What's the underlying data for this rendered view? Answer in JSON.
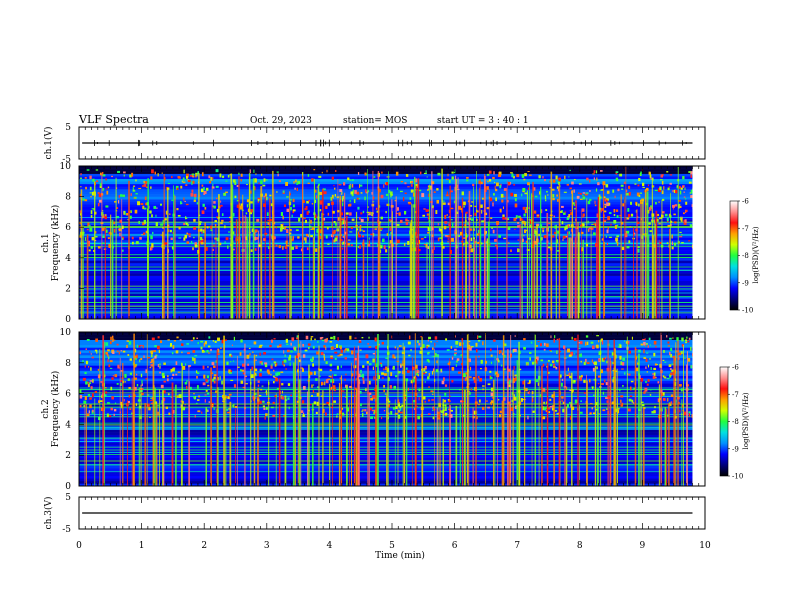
{
  "header": {
    "title": "VLF Spectra",
    "date": "Oct. 29, 2023",
    "station": "station= MOS",
    "start": "start UT =  3 : 40 : 1"
  },
  "chart_data": [
    {
      "type": "line",
      "id": "ch1-voltage",
      "ylabel": "ch.1(V)",
      "ylim": [
        -5,
        5
      ],
      "yticks": [
        "5",
        "-5"
      ],
      "xlim": [
        0,
        10
      ],
      "x": [
        0.05,
        9.8
      ],
      "y": [
        0,
        0
      ]
    },
    {
      "type": "heatmap",
      "id": "ch1-spectrogram",
      "ylabel": [
        "ch.1",
        "Frequency (kHz)"
      ],
      "ylim": [
        0,
        10
      ],
      "yticks": [
        "0",
        "2",
        "4",
        "6",
        "8",
        "10"
      ],
      "xlim": [
        0,
        10
      ],
      "data_extent_min": 9.8,
      "colorbar": {
        "label": "log(PSD)(V²/Hz)",
        "range": [
          -10,
          -6
        ],
        "ticks": [
          "-6",
          "-7",
          "-8",
          "-9",
          "-10"
        ]
      }
    },
    {
      "type": "heatmap",
      "id": "ch2-spectrogram",
      "ylabel": [
        "ch.2",
        "Frequency (kHz)"
      ],
      "ylim": [
        0,
        10
      ],
      "yticks": [
        "0",
        "2",
        "4",
        "6",
        "8",
        "10"
      ],
      "xlim": [
        0,
        10
      ],
      "data_extent_min": 9.8,
      "colorbar": {
        "label": "log(PSD)(V²/Hz)",
        "range": [
          -10,
          -6
        ],
        "ticks": [
          "-6",
          "-7",
          "-8",
          "-9",
          "-10"
        ]
      }
    },
    {
      "type": "line",
      "id": "ch3-voltage",
      "ylabel": "ch.3(V)",
      "ylim": [
        -5,
        5
      ],
      "yticks": [
        "5",
        "-5"
      ],
      "xlim": [
        0,
        10
      ],
      "x": [
        0.05,
        9.8
      ],
      "y": [
        0,
        0
      ]
    }
  ],
  "xaxis": {
    "label": "Time (min)",
    "ticks": [
      "0",
      "1",
      "2",
      "3",
      "4",
      "5",
      "6",
      "7",
      "8",
      "9",
      "10"
    ]
  },
  "colors": {
    "colormap": [
      "#000000",
      "#00007a",
      "#0000ff",
      "#0090ff",
      "#00e0e0",
      "#20ff40",
      "#d0ff00",
      "#ffa000",
      "#ff1010",
      "#ff9090",
      "#ffffff"
    ]
  }
}
